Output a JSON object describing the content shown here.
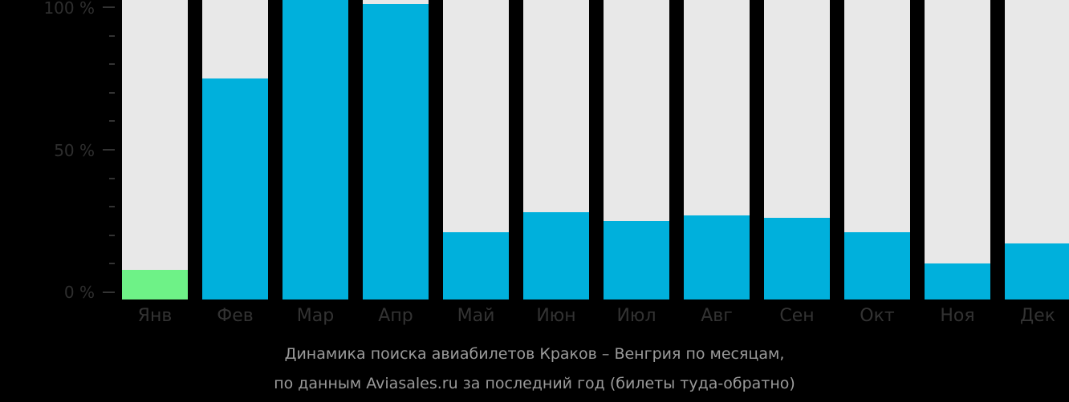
{
  "chart_data": {
    "type": "bar",
    "title": "Динамика поиска авиабилетов Краков – Венгрия по месяцам, по данным Aviasales.ru за последний год (билеты туда-обратно)",
    "categories": [
      "Янв",
      "Фев",
      "Мар",
      "Апр",
      "Май",
      "Июн",
      "Июл",
      "Авг",
      "Сен",
      "Окт",
      "Ноя",
      "Дек"
    ],
    "values": [
      8,
      75,
      103,
      101,
      21,
      28,
      25,
      27,
      26,
      21,
      10,
      17
    ],
    "xlabel": "",
    "ylabel": "",
    "ylim": [
      0,
      100
    ],
    "yticks": [
      "0 %",
      "50 %",
      "100 %"
    ],
    "grid": false,
    "legend": null,
    "highlight_index": 0
  },
  "colors": {
    "background": "#000000",
    "bar": "#00b0dc",
    "bar_highlight": "#6ef287",
    "bar_track": "#e8e8e8",
    "axis_text": "#2e2e2e",
    "caption_text": "#9a9a9a"
  },
  "axis": {
    "y_labels": {
      "top": "100 %",
      "mid": "50 %",
      "bottom": "0 %"
    }
  },
  "caption": {
    "line1": "Динамика поиска авиабилетов Краков – Венгрия по месяцам,",
    "line2": "по данным Aviasales.ru за последний год (билеты туда-обратно)"
  }
}
